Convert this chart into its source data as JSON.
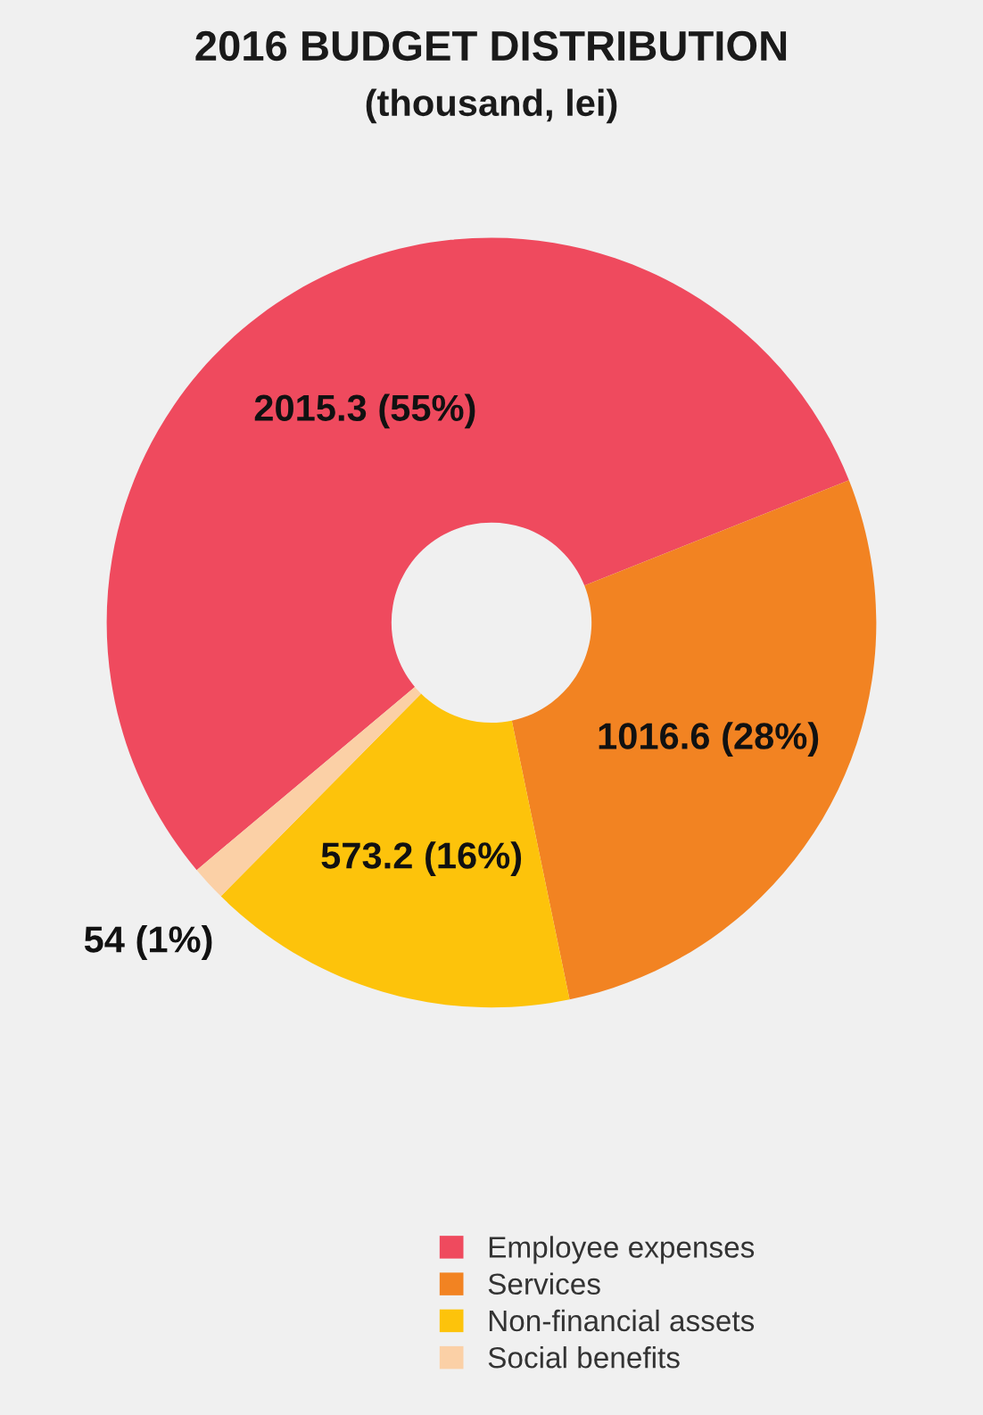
{
  "chart_data": {
    "type": "donut",
    "title": "2016 BUDGET DISTRIBUTION",
    "subtitle": "(thousand, lei)",
    "categories": [
      "Employee expenses",
      "Services",
      "Non-financial assets",
      "Social benefits"
    ],
    "values": [
      2015.3,
      1016.6,
      573.2,
      54
    ],
    "value_labels": [
      "2015.3 (55%)",
      "1016.6 (28%)",
      "573.2 (16%)",
      "54 (1%)"
    ],
    "colors": [
      "#ef4a5e",
      "#f28322",
      "#fdc30b",
      "#fbd0a6"
    ],
    "legend": "bottom right"
  }
}
